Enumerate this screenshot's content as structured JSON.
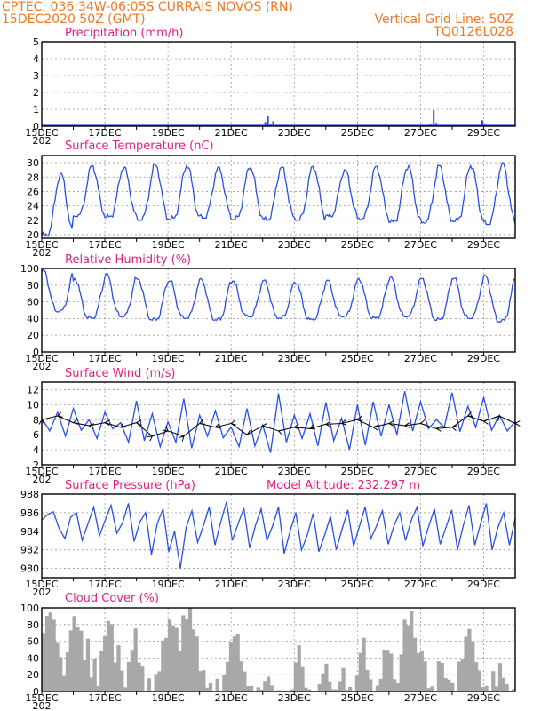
{
  "header": {
    "line1": "CPTEC:   036:34W-06:05S   CURRAIS NOVOS (RN)",
    "line2": "15DEC2020 50Z (GMT)",
    "grid_label": "Vertical Grid Line: 50Z",
    "code": "TQ0126L028"
  },
  "colors": {
    "header": "#f07820",
    "title": "#e0207f",
    "line": "#2a4ee8",
    "cloud": "#a8a8a8",
    "grid": "#999999"
  },
  "chart_data": [
    {
      "type": "bar",
      "title": "Precipitation (mm/h)",
      "ylim": [
        0,
        5
      ],
      "yticks": [
        0,
        1,
        2,
        3,
        4,
        5
      ],
      "x_labels": [
        "15DEC",
        "17DEC",
        "19DEC",
        "21DEC",
        "23DEC",
        "25DEC",
        "27DEC",
        "29DEC"
      ],
      "x_year": "202",
      "x_range": [
        0,
        360
      ],
      "points": [
        [
          150,
          0.05
        ],
        [
          148,
          0.02
        ],
        [
          170,
          0.25
        ],
        [
          172,
          0.6
        ],
        [
          174,
          0.1
        ],
        [
          176,
          0.3
        ],
        [
          178,
          0.08
        ],
        [
          296,
          0.15
        ],
        [
          298,
          0.95
        ],
        [
          300,
          0.2
        ],
        [
          335,
          0.35
        ],
        [
          337,
          0.1
        ],
        [
          60,
          0.03
        ],
        [
          90,
          0.02
        ],
        [
          250,
          0.02
        ]
      ]
    },
    {
      "type": "line",
      "title": "Surface Temperature (nC)",
      "ylim": [
        19.5,
        31
      ],
      "yticks": [
        20,
        22,
        24,
        26,
        28,
        30
      ],
      "x_labels": [
        "15DEC",
        "17DEC",
        "19DEC",
        "21DEC",
        "23DEC",
        "25DEC",
        "27DEC",
        "29DEC"
      ],
      "x_year": "202",
      "x_range": [
        0,
        360
      ],
      "daily_min": [
        19.8,
        22.5,
        22.4,
        22.0,
        22.1,
        22.3,
        22.1,
        22.0,
        22.0,
        22.5,
        22.1,
        21.7,
        21.6,
        21.8,
        21.4
      ],
      "daily_max": [
        28.5,
        29.6,
        29.4,
        29.8,
        29.7,
        29.4,
        29.5,
        29.4,
        29.5,
        29.0,
        29.5,
        29.6,
        29.6,
        29.7,
        30.0
      ]
    },
    {
      "type": "line",
      "title": "Relative Humidity (%)",
      "ylim": [
        0,
        100
      ],
      "yticks": [
        0,
        20,
        40,
        60,
        80,
        100
      ],
      "x_labels": [
        "15DEC",
        "17DEC",
        "19DEC",
        "21DEC",
        "23DEC",
        "25DEC",
        "27DEC",
        "29DEC"
      ],
      "x_year": "202",
      "x_range": [
        0,
        360
      ],
      "daily_min": [
        48,
        40,
        42,
        38,
        40,
        38,
        42,
        40,
        38,
        42,
        40,
        42,
        38,
        40,
        36
      ],
      "daily_max": [
        98,
        88,
        94,
        88,
        86,
        88,
        86,
        86,
        84,
        86,
        88,
        90,
        88,
        90,
        92
      ]
    },
    {
      "type": "line",
      "title": "Surface Wind (m/s)",
      "ylim": [
        2,
        13
      ],
      "yticks": [
        2,
        4,
        6,
        8,
        10,
        12
      ],
      "x_labels": [
        "15DEC",
        "17DEC",
        "19DEC",
        "21DEC",
        "23DEC",
        "25DEC",
        "27DEC",
        "29DEC"
      ],
      "x_year": "202",
      "x_range": [
        0,
        360
      ],
      "speed": [
        8.2,
        6.5,
        9.0,
        5.8,
        9.5,
        6.6,
        8.0,
        5.5,
        9.0,
        6.8,
        7.6,
        5.0,
        10.5,
        5.2,
        8.8,
        4.4,
        7.7,
        5.0,
        10.8,
        4.2,
        8.6,
        5.8,
        9.2,
        5.6,
        7.0,
        4.4,
        9.5,
        4.5,
        7.3,
        3.6,
        11.5,
        5.0,
        8.6,
        5.5,
        8.8,
        4.5,
        10.3,
        5.2,
        8.2,
        4.0,
        10.0,
        4.6,
        10.4,
        5.8,
        10.0,
        6.0,
        11.8,
        6.5,
        10.4,
        6.8,
        8.0,
        7.0,
        11.6,
        6.4,
        9.8,
        7.0,
        11.0,
        6.6,
        8.6,
        6.5,
        7.8
      ],
      "arrows": [
        [
          0,
          8.0,
          0,
          1
        ],
        [
          12,
          8.5,
          -1,
          -0.3
        ],
        [
          24,
          7.6,
          -1,
          -0.2
        ],
        [
          36,
          7.2,
          -1,
          0.1
        ],
        [
          48,
          7.6,
          -1,
          0
        ],
        [
          60,
          7.0,
          -0.9,
          -0.5
        ],
        [
          72,
          7.6,
          -1,
          0
        ],
        [
          84,
          5.8,
          1,
          0.7
        ],
        [
          96,
          6.5,
          0.8,
          -0.6
        ],
        [
          108,
          5.8,
          0.7,
          0.7
        ],
        [
          120,
          7.5,
          -1,
          -0.4
        ],
        [
          132,
          7.0,
          -1,
          -0.3
        ],
        [
          144,
          7.5,
          -1,
          -0.2
        ],
        [
          156,
          6.0,
          -0.9,
          -0.4
        ],
        [
          168,
          7.2,
          -1,
          0
        ],
        [
          180,
          6.5,
          -1,
          0.3
        ],
        [
          192,
          7.0,
          -1,
          -0.1
        ],
        [
          204,
          6.8,
          -0.9,
          -0.4
        ],
        [
          216,
          7.4,
          -1,
          0
        ],
        [
          228,
          7.5,
          -1,
          -0.2
        ],
        [
          240,
          8.0,
          -1,
          -0.2
        ],
        [
          252,
          7.0,
          -1,
          0.1
        ],
        [
          264,
          7.5,
          -1,
          0
        ],
        [
          276,
          7.2,
          -1,
          -0.1
        ],
        [
          288,
          7.5,
          -1,
          -0.2
        ],
        [
          300,
          6.8,
          -1,
          0
        ],
        [
          312,
          7.0,
          -1,
          0.2
        ],
        [
          324,
          8.5,
          -0.9,
          -0.4
        ],
        [
          336,
          7.8,
          -1,
          0.1
        ],
        [
          348,
          8.5,
          0.7,
          0.7
        ],
        [
          360,
          7.5,
          -1,
          0
        ]
      ]
    },
    {
      "type": "line",
      "title": "Surface Pressure (hPa)",
      "annotation": "Model Altitude: 232.297 m",
      "ylim": [
        979,
        988
      ],
      "yticks": [
        980,
        982,
        984,
        986,
        988
      ],
      "x_labels": [
        "15DEC",
        "17DEC",
        "19DEC",
        "21DEC",
        "23DEC",
        "25DEC",
        "27DEC",
        "29DEC"
      ],
      "x_year": "202",
      "x_range": [
        0,
        360
      ],
      "series": [
        985.2,
        985.8,
        986.1,
        984.3,
        983.2,
        985.5,
        986.0,
        983.0,
        984.8,
        986.6,
        983.5,
        985.2,
        986.8,
        983.8,
        984.9,
        987.0,
        982.9,
        985.0,
        986.0,
        981.5,
        984.8,
        986.4,
        981.8,
        984.0,
        980.0,
        984.4,
        986.2,
        982.8,
        984.6,
        986.6,
        982.5,
        985.0,
        987.2,
        983.0,
        984.8,
        986.5,
        982.2,
        984.6,
        986.4,
        983.0,
        984.6,
        986.6,
        981.6,
        984.0,
        986.0,
        982.0,
        983.6,
        985.9,
        981.8,
        983.6,
        985.6,
        982.0,
        984.2,
        986.3,
        982.4,
        984.5,
        986.6,
        983.2,
        984.6,
        986.2,
        982.6,
        984.6,
        986.0,
        983.0,
        985.2,
        986.6,
        982.4,
        984.5,
        986.4,
        982.6,
        984.4,
        986.3,
        982.0,
        984.6,
        986.8,
        982.5,
        984.8,
        987.0,
        982.0,
        984.4,
        986.0,
        982.5,
        985.4
      ]
    },
    {
      "type": "area",
      "title": "Cloud Cover (%)",
      "ylim": [
        0,
        100
      ],
      "yticks": [
        0,
        20,
        40,
        60,
        80,
        100
      ],
      "x_labels": [
        "15DEC",
        "17DEC",
        "19DEC",
        "21DEC",
        "23DEC",
        "25DEC",
        "27DEC",
        "29DEC"
      ],
      "x_year": "202",
      "x_range": [
        0,
        360
      ],
      "series": [
        70,
        90,
        95,
        85,
        60,
        40,
        20,
        45,
        75,
        88,
        80,
        70,
        40,
        60,
        20,
        35,
        10,
        45,
        70,
        80,
        85,
        30,
        60,
        20,
        10,
        30,
        55,
        70,
        40,
        25,
        5,
        10,
        2,
        15,
        30,
        55,
        70,
        80,
        85,
        70,
        55,
        85,
        92,
        95,
        80,
        60,
        30,
        20,
        10,
        5,
        2,
        10,
        5,
        15,
        40,
        55,
        70,
        65,
        40,
        20,
        10,
        3,
        0,
        2,
        5,
        10,
        20,
        5,
        2,
        0,
        0,
        0,
        0,
        2,
        35,
        55,
        30,
        5,
        2,
        0,
        0,
        10,
        20,
        35,
        10,
        5,
        0,
        15,
        25,
        5,
        2,
        0,
        15,
        50,
        60,
        30,
        10,
        5,
        2,
        20,
        45,
        55,
        40,
        20,
        5,
        50,
        80,
        85,
        90,
        70,
        40,
        55,
        30,
        10,
        0,
        5,
        30,
        40,
        10,
        20,
        5,
        2,
        30,
        45,
        60,
        80,
        55,
        40,
        20,
        10,
        2,
        5,
        20,
        10,
        30,
        20,
        5,
        2,
        0
      ]
    }
  ]
}
